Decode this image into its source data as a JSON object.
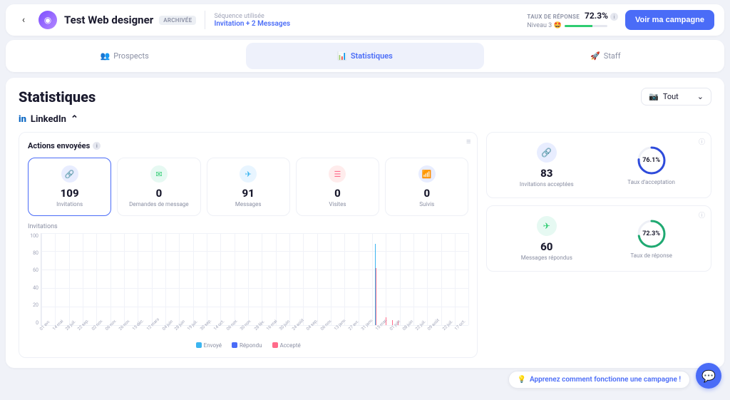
{
  "topbar": {
    "title": "Test Web designer",
    "archived_badge": "ARCHIVÉE",
    "sequence_label": "Séquence utilisée",
    "sequence_value": "Invitation + 2 Messages",
    "response_label": "TAUX DE RÉPONSE",
    "response_value": "72.3%",
    "level_label": "Niveau 3 🤩",
    "level_progress_pct": 65,
    "cta": "Voir ma campagne"
  },
  "tabs": {
    "prospects": "Prospects",
    "stats": "Statistiques",
    "staff": "Staff"
  },
  "page": {
    "heading": "Statistiques",
    "period_selected": "Tout",
    "platform": "LinkedIn"
  },
  "actions": {
    "title": "Actions envoyées",
    "tiles": [
      {
        "value": "109",
        "label": "Invitations",
        "icon_bg": "#e8edff",
        "icon_color": "#4a6cf7",
        "glyph": "🔗",
        "active": true
      },
      {
        "value": "0",
        "label": "Demandes de message",
        "icon_bg": "#e6f9f2",
        "icon_color": "#2ecc71",
        "glyph": "✉"
      },
      {
        "value": "91",
        "label": "Messages",
        "icon_bg": "#e8f5ff",
        "icon_color": "#3bb5f0",
        "glyph": "✈"
      },
      {
        "value": "0",
        "label": "Visites",
        "icon_bg": "#ffecec",
        "icon_color": "#ff6b8a",
        "glyph": "☰"
      },
      {
        "value": "0",
        "label": "Suivis",
        "icon_bg": "#e8edff",
        "icon_color": "#4a6cf7",
        "glyph": "📶"
      }
    ]
  },
  "chart": {
    "title": "Invitations",
    "ymax": 100,
    "yticks": [
      "100",
      "80",
      "60",
      "40",
      "20",
      "0"
    ],
    "xlabels": [
      "01 avr.",
      "14 mai",
      "28 juil.",
      "22 sep.",
      "02 nov.",
      "06 nov.",
      "26 nov.",
      "15 déc.",
      "12 mars",
      "04 juin",
      "28 juin",
      "19 juil.",
      "30 sep.",
      "14 oct.",
      "06 nov.",
      "30 nov.",
      "28 fév.",
      "16 mai",
      "30 juin",
      "24 août",
      "04 sep.",
      "06 nov.",
      "13 janv.",
      "27 avr.",
      "31 janv.",
      "15 mar.",
      "01 juin",
      "08 juin",
      "22 juil.",
      "09 août",
      "22 juil.",
      "17 oct."
    ],
    "bars": [
      {
        "x_pct": 78.0,
        "h_pct": 88,
        "color": "#3bb5f0"
      },
      {
        "x_pct": 78.3,
        "h_pct": 62,
        "color": "#ff6b8a"
      },
      {
        "x_pct": 80.5,
        "h_pct": 8,
        "color": "#ff6b8a"
      },
      {
        "x_pct": 82.0,
        "h_pct": 5,
        "color": "#ff6b8a"
      },
      {
        "x_pct": 83.5,
        "h_pct": 4,
        "color": "#ff6b8a"
      }
    ],
    "legend": [
      {
        "label": "Envoyé",
        "color": "#3bb5f0"
      },
      {
        "label": "Répondu",
        "color": "#4a6cf7"
      },
      {
        "label": "Accepté",
        "color": "#ff6b8a"
      }
    ],
    "grid_color": "#f0f2f8"
  },
  "kpis": [
    {
      "count": "83",
      "count_label": "Invitations acceptées",
      "count_icon_bg": "#e8edff",
      "count_icon_color": "#4a6cf7",
      "count_glyph": "🔗",
      "rate": "76.1%",
      "rate_pct": 76.1,
      "rate_label": "Taux d'acceptation",
      "ring_color": "#2e4bdb"
    },
    {
      "count": "60",
      "count_label": "Messages répondus",
      "count_icon_bg": "#e6f9f2",
      "count_icon_color": "#2ecc71",
      "count_glyph": "✈",
      "rate": "72.3%",
      "rate_pct": 72.3,
      "rate_label": "Taux de réponse",
      "ring_color": "#1fa971"
    }
  ],
  "tip": "Apprenez comment fonctionne une campagne !"
}
